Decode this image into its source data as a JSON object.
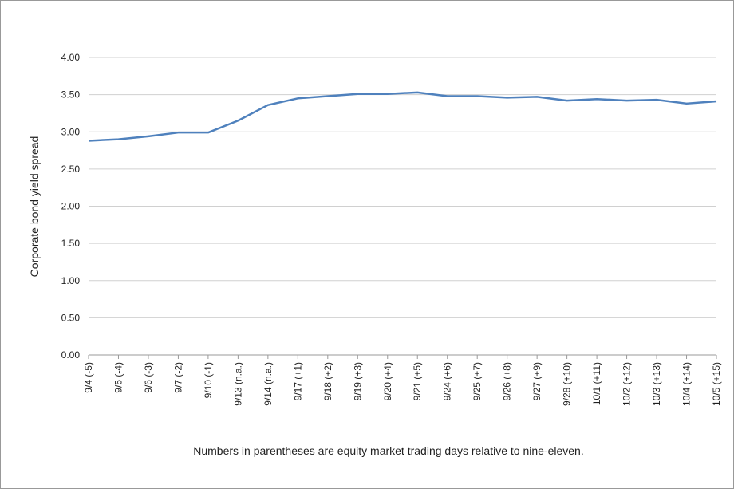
{
  "chart_data": {
    "type": "line",
    "y_label": "Corporate bond yield spread",
    "note": "Numbers in parentheses are equity market trading days relative to nine-eleven.",
    "categories": [
      "9/4 (-5)",
      "9/5 (-4)",
      "9/6 (-3)",
      "9/7 (-2)",
      "9/10 (-1)",
      "9/13 (n.a.)",
      "9/14 (n.a.)",
      "9/17 (+1)",
      "9/18 (+2)",
      "9/19 (+3)",
      "9/20 (+4)",
      "9/21 (+5)",
      "9/24 (+6)",
      "9/25 (+7)",
      "9/26 (+8)",
      "9/27 (+9)",
      "9/28 (+10)",
      "10/1 (+11)",
      "10/2 (+12)",
      "10/3 (+13)",
      "10/4 (+14)",
      "10/5 (+15)"
    ],
    "series": [
      {
        "color": "#4f81bd",
        "values": [
          2.88,
          2.9,
          2.94,
          2.99,
          2.99,
          3.15,
          3.36,
          3.45,
          3.48,
          3.51,
          3.51,
          3.53,
          3.48,
          3.48,
          3.46,
          3.47,
          3.42,
          3.44,
          3.42,
          3.43,
          3.38,
          3.41
        ]
      }
    ],
    "ylim": [
      0,
      4
    ],
    "yticks": [
      {
        "value": 0,
        "label": "0.00"
      },
      {
        "value": 0.5,
        "label": "0.50"
      },
      {
        "value": 1,
        "label": "1.00"
      },
      {
        "value": 1.5,
        "label": "1.50"
      },
      {
        "value": 2,
        "label": "2.00"
      },
      {
        "value": 2.5,
        "label": "2.50"
      },
      {
        "value": 3,
        "label": "3.00"
      },
      {
        "value": 3.5,
        "label": "3.50"
      },
      {
        "value": 4,
        "label": "4.00"
      }
    ],
    "grid": true
  }
}
